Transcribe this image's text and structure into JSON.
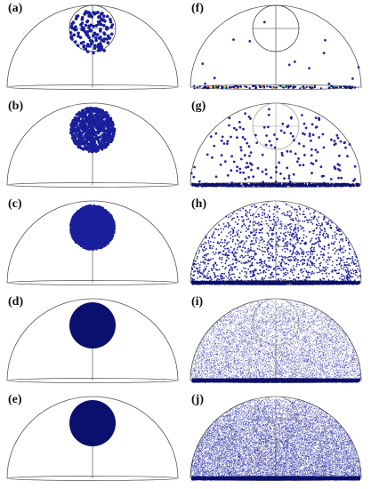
{
  "figure": {
    "panels": [
      {
        "id": "a",
        "label": "(a)",
        "particles": 130,
        "dome_particles": 0,
        "floor_particles": 0,
        "cluster_fill": 0.0
      },
      {
        "id": "b",
        "label": "(b)",
        "particles": 900,
        "dome_particles": 0,
        "floor_particles": 0,
        "cluster_fill": 0.0
      },
      {
        "id": "c",
        "label": "(c)",
        "particles": 2500,
        "dome_particles": 0,
        "floor_particles": 0,
        "cluster_fill": 0.0
      },
      {
        "id": "d",
        "label": "(d)",
        "particles": 0,
        "dome_particles": 0,
        "floor_particles": 0,
        "cluster_fill": 1.0
      },
      {
        "id": "e",
        "label": "(e)",
        "particles": 0,
        "dome_particles": 0,
        "floor_particles": 0,
        "cluster_fill": 1.0
      },
      {
        "id": "f",
        "label": "(f)",
        "particles": 0,
        "dome_particles": 14,
        "floor_particles": 140,
        "cluster_fill": 0.0
      },
      {
        "id": "g",
        "label": "(g)",
        "particles": 0,
        "dome_particles": 170,
        "floor_particles": 600,
        "cluster_fill": 0.0
      },
      {
        "id": "h",
        "label": "(h)",
        "particles": 0,
        "dome_particles": 1400,
        "floor_particles": 1200,
        "cluster_fill": 0.0
      },
      {
        "id": "i",
        "label": "(i)",
        "particles": 0,
        "dome_particles": 8000,
        "floor_particles": 2000,
        "cluster_fill": 0.0
      },
      {
        "id": "j",
        "label": "(j)",
        "particles": 0,
        "dome_particles": 16000,
        "floor_particles": 2500,
        "cluster_fill": 0.0
      }
    ],
    "colors": {
      "particle": "#1a1f9a",
      "particle_dense": "#0b0f6e",
      "floor_accents": [
        "#2ec4d8",
        "#f0d23a",
        "#e84a3a",
        "#5bd15b"
      ],
      "outline": "#555555"
    }
  }
}
